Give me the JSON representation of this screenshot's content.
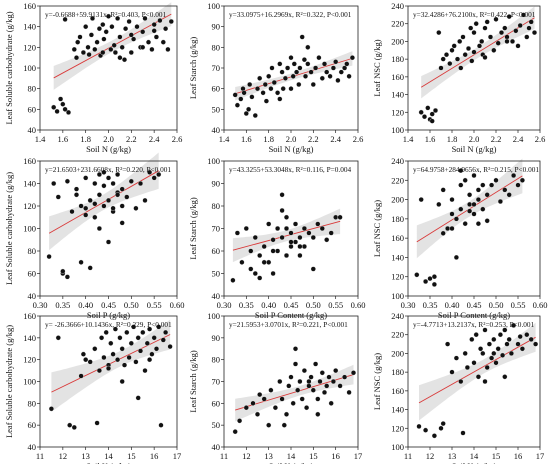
{
  "chart_data": [
    {
      "type": "scatter",
      "equation": "y=-0.6688+59.9131x,  R²=0.403,  P<0.001",
      "xlabel": "Soil N (g/kg)",
      "ylabel": "Leaf Soluble carbohydrate (g/kg)",
      "xlim": [
        1.4,
        2.6
      ],
      "ylim": [
        40,
        160
      ],
      "xticks": [
        "1.4",
        "1.6",
        "1.8",
        "2.0",
        "2.2",
        "2.4",
        "2.6"
      ],
      "yticks": [
        "40",
        "60",
        "80",
        "100",
        "120",
        "140",
        "160"
      ],
      "fit": {
        "intercept": -0.6688,
        "slope": 59.9131
      },
      "x": [
        1.52,
        1.55,
        1.58,
        1.6,
        1.62,
        1.65,
        1.62,
        1.7,
        1.72,
        1.73,
        1.75,
        1.78,
        1.8,
        1.82,
        1.83,
        1.85,
        1.86,
        1.88,
        1.9,
        1.92,
        1.93,
        1.95,
        1.96,
        1.98,
        2.0,
        2.02,
        2.03,
        2.05,
        2.06,
        2.08,
        2.1,
        2.12,
        2.14,
        2.15,
        2.18,
        2.2,
        2.22,
        2.25,
        2.28,
        2.3,
        2.32,
        2.35,
        2.38,
        2.4,
        2.42,
        2.45,
        2.48,
        2.5,
        2.52,
        2.55,
        2.1,
        2.3,
        1.95,
        2.2,
        2.4
      ],
      "y": [
        62,
        58,
        70,
        65,
        60,
        57,
        147,
        118,
        110,
        125,
        130,
        115,
        140,
        120,
        113,
        132,
        148,
        118,
        125,
        138,
        112,
        142,
        128,
        135,
        150,
        118,
        140,
        122,
        115,
        148,
        130,
        120,
        108,
        138,
        145,
        115,
        128,
        140,
        120,
        135,
        148,
        125,
        118,
        142,
        130,
        146,
        125,
        138,
        118,
        145,
        110,
        120,
        115,
        132,
        136
      ]
    },
    {
      "type": "scatter",
      "equation": "y=33.0975+16.2969x,  R²=0.322,  P<0.001",
      "xlabel": "Soil N (g/kg)",
      "ylabel": "Leaf Starch (g/kg)",
      "xlim": [
        1.4,
        2.6
      ],
      "ylim": [
        40,
        100
      ],
      "xticks": [
        "1.4",
        "1.6",
        "1.8",
        "2.0",
        "2.2",
        "2.4",
        "2.6"
      ],
      "yticks": [
        "40",
        "50",
        "60",
        "70",
        "80",
        "90",
        "100"
      ],
      "fit": {
        "intercept": 33.0975,
        "slope": 16.2969
      },
      "x": [
        1.5,
        1.52,
        1.55,
        1.57,
        1.58,
        1.6,
        1.62,
        1.63,
        1.65,
        1.68,
        1.7,
        1.72,
        1.75,
        1.77,
        1.78,
        1.8,
        1.82,
        1.83,
        1.85,
        1.88,
        1.9,
        1.92,
        1.93,
        1.95,
        1.97,
        2.0,
        2.02,
        2.03,
        2.05,
        2.07,
        2.08,
        2.1,
        2.12,
        2.13,
        2.15,
        2.18,
        2.2,
        2.22,
        2.25,
        2.28,
        2.3,
        2.32,
        2.35,
        2.38,
        2.4,
        2.42,
        2.45,
        2.48,
        2.5,
        2.52,
        2.55,
        1.9,
        2.0,
        2.15
      ],
      "y": [
        57,
        52,
        55,
        60,
        58,
        48,
        50,
        62,
        56,
        47,
        60,
        65,
        58,
        62,
        54,
        66,
        60,
        70,
        63,
        58,
        72,
        68,
        60,
        65,
        70,
        75,
        66,
        72,
        68,
        62,
        70,
        85,
        74,
        66,
        72,
        68,
        62,
        70,
        75,
        65,
        72,
        68,
        66,
        70,
        73,
        64,
        68,
        70,
        72,
        66,
        75,
        55,
        60,
        80
      ]
    },
    {
      "type": "scatter",
      "equation": "y=32.4286+76.2100x,  R²=0.422,  P<0.001",
      "xlabel": "Soil N (g/kg)",
      "ylabel": "Leaf NSC (g/kg)",
      "xlim": [
        1.4,
        2.6
      ],
      "ylim": [
        100,
        240
      ],
      "xticks": [
        "1.4",
        "1.6",
        "1.8",
        "2.0",
        "2.2",
        "2.4",
        "2.6"
      ],
      "yticks": [
        "100",
        "120",
        "140",
        "160",
        "180",
        "200",
        "220",
        "240"
      ],
      "fit": {
        "intercept": 32.4286,
        "slope": 76.21
      },
      "x": [
        1.52,
        1.55,
        1.58,
        1.6,
        1.62,
        1.65,
        1.68,
        1.7,
        1.72,
        1.75,
        1.78,
        1.8,
        1.82,
        1.85,
        1.87,
        1.88,
        1.9,
        1.92,
        1.95,
        1.97,
        1.98,
        2.0,
        2.02,
        2.05,
        2.07,
        2.08,
        2.1,
        2.12,
        2.15,
        2.18,
        2.2,
        2.22,
        2.25,
        2.28,
        2.3,
        2.32,
        2.35,
        2.38,
        2.4,
        2.42,
        2.45,
        2.48,
        2.5,
        2.52,
        2.55,
        1.62,
        2.0,
        2.3,
        2.1
      ],
      "y": [
        120,
        115,
        125,
        112,
        118,
        122,
        210,
        170,
        180,
        185,
        175,
        190,
        195,
        180,
        200,
        170,
        205,
        185,
        192,
        215,
        178,
        210,
        220,
        195,
        200,
        185,
        215,
        222,
        205,
        190,
        225,
        198,
        210,
        215,
        205,
        228,
        200,
        212,
        195,
        218,
        230,
        205,
        215,
        222,
        210,
        110,
        188,
        200,
        182
      ]
    },
    {
      "type": "scatter",
      "equation": "y=21.6503+231.6608x,  R²=0.220,  P<0.001",
      "xlabel": "Soil P  (g/kg)",
      "ylabel": "Leaf Soluble carbohydrate (g/kg)",
      "xlim": [
        0.3,
        0.6
      ],
      "ylim": [
        40,
        160
      ],
      "xticks": [
        "0.30",
        "0.35",
        "0.40",
        "0.45",
        "0.50",
        "0.55",
        "0.60"
      ],
      "yticks": [
        "40",
        "60",
        "80",
        "100",
        "120",
        "140",
        "160"
      ],
      "fit": {
        "intercept": 21.6503,
        "slope": 231.6608
      },
      "x": [
        0.32,
        0.33,
        0.34,
        0.35,
        0.36,
        0.35,
        0.37,
        0.38,
        0.39,
        0.4,
        0.4,
        0.41,
        0.42,
        0.42,
        0.43,
        0.43,
        0.44,
        0.44,
        0.45,
        0.45,
        0.46,
        0.46,
        0.47,
        0.47,
        0.48,
        0.48,
        0.49,
        0.5,
        0.51,
        0.52,
        0.53,
        0.54,
        0.55,
        0.56,
        0.41,
        0.43,
        0.45,
        0.47,
        0.38,
        0.4,
        0.44,
        0.46,
        0.48,
        0.42,
        0.36,
        0.39
      ],
      "y": [
        75,
        140,
        128,
        60,
        57,
        62,
        115,
        130,
        120,
        118,
        145,
        125,
        140,
        110,
        148,
        130,
        120,
        138,
        145,
        125,
        115,
        140,
        132,
        148,
        120,
        135,
        128,
        142,
        118,
        140,
        125,
        150,
        145,
        148,
        65,
        100,
        88,
        130,
        135,
        112,
        150,
        118,
        105,
        122,
        142,
        70
      ]
    },
    {
      "type": "scatter",
      "equation": "y=43.3255+53.3048x,  R²=0.116,  P=0.004",
      "xlabel": "Soil P Content (g/kg)",
      "ylabel": "Leaf Starch (g/kg)",
      "xlim": [
        0.3,
        0.6
      ],
      "ylim": [
        40,
        100
      ],
      "xticks": [
        "0.30",
        "0.35",
        "0.40",
        "0.45",
        "0.50",
        "0.55",
        "0.60"
      ],
      "yticks": [
        "40",
        "50",
        "60",
        "70",
        "80",
        "90",
        "100"
      ],
      "fit": {
        "intercept": 43.3255,
        "slope": 53.3048
      },
      "x": [
        0.32,
        0.33,
        0.34,
        0.35,
        0.36,
        0.36,
        0.37,
        0.38,
        0.38,
        0.39,
        0.4,
        0.4,
        0.41,
        0.41,
        0.42,
        0.42,
        0.43,
        0.43,
        0.44,
        0.44,
        0.45,
        0.45,
        0.46,
        0.46,
        0.47,
        0.47,
        0.48,
        0.48,
        0.49,
        0.5,
        0.5,
        0.51,
        0.52,
        0.53,
        0.54,
        0.55,
        0.56,
        0.39,
        0.41,
        0.43,
        0.45,
        0.47,
        0.37,
        0.44
      ],
      "y": [
        47,
        68,
        55,
        70,
        60,
        52,
        66,
        48,
        58,
        62,
        72,
        55,
        65,
        50,
        70,
        60,
        85,
        66,
        75,
        58,
        68,
        62,
        72,
        64,
        66,
        58,
        70,
        62,
        68,
        52,
        66,
        72,
        70,
        65,
        68,
        75,
        75,
        55,
        60,
        78,
        64,
        62,
        50,
        70
      ]
    },
    {
      "type": "scatter",
      "equation": "y=64.9758+284.9656x,  R²=0.215,  P<0.001",
      "xlabel": "Soil P Content (g/kg)",
      "ylabel": "Leaf NSC (g/kg)",
      "xlim": [
        0.3,
        0.6
      ],
      "ylim": [
        100,
        240
      ],
      "xticks": [
        "0.30",
        "0.35",
        "0.40",
        "0.45",
        "0.50",
        "0.55",
        "0.60"
      ],
      "yticks": [
        "100",
        "120",
        "140",
        "160",
        "180",
        "200",
        "220",
        "240"
      ],
      "fit": {
        "intercept": 64.9758,
        "slope": 284.9656
      },
      "x": [
        0.32,
        0.33,
        0.34,
        0.35,
        0.36,
        0.36,
        0.37,
        0.38,
        0.39,
        0.4,
        0.4,
        0.41,
        0.42,
        0.42,
        0.43,
        0.43,
        0.44,
        0.44,
        0.45,
        0.45,
        0.46,
        0.46,
        0.47,
        0.47,
        0.48,
        0.48,
        0.49,
        0.5,
        0.51,
        0.52,
        0.53,
        0.54,
        0.55,
        0.56,
        0.38,
        0.4,
        0.42,
        0.44,
        0.46,
        0.41,
        0.45
      ],
      "y": [
        122,
        200,
        115,
        118,
        112,
        120,
        195,
        210,
        170,
        185,
        200,
        180,
        215,
        190,
        220,
        175,
        205,
        195,
        225,
        185,
        210,
        200,
        215,
        190,
        205,
        178,
        215,
        220,
        198,
        210,
        205,
        225,
        215,
        220,
        165,
        170,
        230,
        188,
        175,
        140,
        195
      ]
    },
    {
      "type": "scatter",
      "equation": "y= -26.3666+10.1436x,  R²=0.229,  P<0.001",
      "xlabel": "Soil K (g/kg)",
      "ylabel": "Leaf Soluble carbohydrate (g/kg)",
      "xlim": [
        11,
        17
      ],
      "ylim": [
        40,
        160
      ],
      "xticks": [
        "11",
        "12",
        "13",
        "14",
        "15",
        "16",
        "17"
      ],
      "yticks": [
        "40",
        "60",
        "80",
        "100",
        "120",
        "140",
        "160"
      ],
      "fit": {
        "intercept": -26.3666,
        "slope": 10.1436
      },
      "x": [
        11.5,
        11.8,
        12.3,
        12.5,
        12.8,
        13.0,
        13.2,
        13.4,
        13.6,
        13.7,
        13.8,
        13.9,
        14.0,
        14.1,
        14.2,
        14.3,
        14.4,
        14.5,
        14.6,
        14.7,
        14.8,
        14.9,
        15.0,
        15.1,
        15.2,
        15.3,
        15.4,
        15.5,
        15.6,
        15.7,
        15.8,
        15.9,
        16.0,
        16.1,
        16.2,
        16.4,
        16.5,
        16.7,
        13.5,
        14.6,
        15.3,
        15.8,
        12.9,
        14.0,
        16.3
      ],
      "y": [
        75,
        140,
        60,
        58,
        105,
        120,
        118,
        130,
        110,
        140,
        122,
        145,
        115,
        135,
        125,
        148,
        120,
        140,
        130,
        115,
        145,
        122,
        135,
        150,
        118,
        140,
        128,
        145,
        110,
        135,
        148,
        125,
        140,
        130,
        150,
        138,
        145,
        132,
        62,
        100,
        85,
        120,
        125,
        112,
        60
      ]
    },
    {
      "type": "scatter",
      "equation": "y=21.5953+3.0701x,  R²=0.221,  P<0.001",
      "xlabel": "Soil K (g/kg)",
      "ylabel": "Leaf Starch (g/kg)",
      "xlim": [
        11,
        17
      ],
      "ylim": [
        40,
        100
      ],
      "xticks": [
        "11",
        "12",
        "13",
        "14",
        "15",
        "16",
        "17"
      ],
      "yticks": [
        "40",
        "50",
        "60",
        "70",
        "80",
        "90",
        "100"
      ],
      "fit": {
        "intercept": 21.5953,
        "slope": 3.0701
      },
      "x": [
        11.5,
        11.7,
        12.0,
        12.3,
        12.5,
        12.8,
        13.0,
        13.1,
        13.3,
        13.5,
        13.6,
        13.8,
        13.9,
        14.0,
        14.1,
        14.2,
        14.3,
        14.4,
        14.5,
        14.6,
        14.7,
        14.8,
        14.9,
        15.0,
        15.1,
        15.2,
        15.3,
        15.4,
        15.5,
        15.6,
        15.7,
        15.8,
        15.9,
        16.0,
        16.2,
        16.4,
        16.6,
        16.8,
        13.7,
        14.2,
        15.2,
        12.6,
        14.8
      ],
      "y": [
        47,
        52,
        58,
        60,
        55,
        62,
        50,
        66,
        58,
        70,
        62,
        55,
        68,
        72,
        60,
        85,
        66,
        70,
        62,
        75,
        58,
        68,
        72,
        66,
        78,
        62,
        70,
        74,
        65,
        68,
        72,
        60,
        70,
        75,
        68,
        72,
        65,
        74,
        50,
        78,
        55,
        64,
        70
      ]
    },
    {
      "type": "scatter",
      "equation": "y=-4.7713+13.2137x,  R²=0.253,  P<0.001",
      "xlabel": "Soil K (g/kg)",
      "ylabel": "Leaf NSC (g/kg)",
      "xlim": [
        11,
        17
      ],
      "ylim": [
        100,
        240
      ],
      "xticks": [
        "11",
        "12",
        "13",
        "14",
        "15",
        "16",
        "17"
      ],
      "yticks": [
        "100",
        "120",
        "140",
        "160",
        "180",
        "200",
        "220",
        "240"
      ],
      "fit": {
        "intercept": -4.7713,
        "slope": 13.2137
      },
      "x": [
        11.5,
        11.8,
        12.2,
        12.5,
        12.8,
        13.0,
        13.2,
        13.4,
        13.6,
        13.7,
        13.9,
        14.0,
        14.1,
        14.2,
        14.3,
        14.4,
        14.5,
        14.6,
        14.7,
        14.8,
        14.9,
        15.0,
        15.1,
        15.2,
        15.3,
        15.4,
        15.5,
        15.6,
        15.7,
        15.8,
        16.0,
        16.1,
        16.2,
        16.4,
        16.6,
        16.8,
        13.5,
        14.5,
        15.4,
        12.6,
        14.9
      ],
      "y": [
        122,
        118,
        112,
        120,
        210,
        180,
        195,
        170,
        200,
        185,
        215,
        190,
        220,
        175,
        205,
        200,
        225,
        185,
        210,
        195,
        215,
        190,
        205,
        220,
        198,
        225,
        210,
        215,
        200,
        230,
        210,
        218,
        205,
        220,
        215,
        210,
        115,
        170,
        175,
        125,
        200
      ]
    }
  ]
}
